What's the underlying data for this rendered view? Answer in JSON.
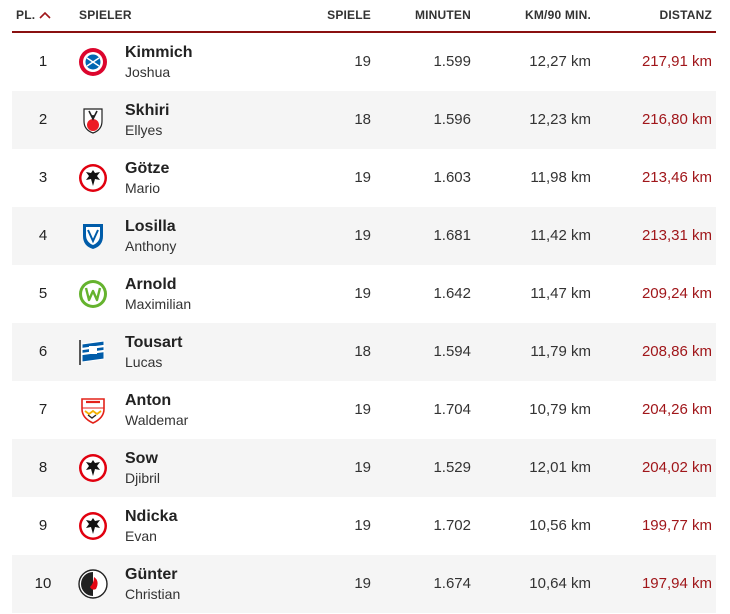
{
  "header": {
    "rank": "PL.",
    "player": "SPIELER",
    "games": "SPIELE",
    "minutes": "MINUTEN",
    "km_pace": "KM/90 MIN.",
    "distance": "DISTANZ"
  },
  "colors": {
    "accent": "#a0161a",
    "header_rule": "#8a1010",
    "alt_row": "#f5f5f5"
  },
  "rows": [
    {
      "rank": "1",
      "surname": "Kimmich",
      "firstname": "Joshua",
      "games": "19",
      "minutes": "1.599",
      "km_pace": "12,27 km",
      "distance": "217,91 km",
      "crest": "bayern-crest-icon"
    },
    {
      "rank": "2",
      "surname": "Skhiri",
      "firstname": "Ellyes",
      "games": "18",
      "minutes": "1.596",
      "km_pace": "12,23 km",
      "distance": "216,80 km",
      "crest": "koeln-crest-icon"
    },
    {
      "rank": "3",
      "surname": "Götze",
      "firstname": "Mario",
      "games": "19",
      "minutes": "1.603",
      "km_pace": "11,98 km",
      "distance": "213,46 km",
      "crest": "frankfurt-crest-icon"
    },
    {
      "rank": "4",
      "surname": "Losilla",
      "firstname": "Anthony",
      "games": "19",
      "minutes": "1.681",
      "km_pace": "11,42 km",
      "distance": "213,31 km",
      "crest": "bochum-crest-icon"
    },
    {
      "rank": "5",
      "surname": "Arnold",
      "firstname": "Maximilian",
      "games": "19",
      "minutes": "1.642",
      "km_pace": "11,47 km",
      "distance": "209,24 km",
      "crest": "wolfsburg-crest-icon"
    },
    {
      "rank": "6",
      "surname": "Tousart",
      "firstname": "Lucas",
      "games": "18",
      "minutes": "1.594",
      "km_pace": "11,79 km",
      "distance": "208,86 km",
      "crest": "hertha-crest-icon"
    },
    {
      "rank": "7",
      "surname": "Anton",
      "firstname": "Waldemar",
      "games": "19",
      "minutes": "1.704",
      "km_pace": "10,79 km",
      "distance": "204,26 km",
      "crest": "stuttgart-crest-icon"
    },
    {
      "rank": "8",
      "surname": "Sow",
      "firstname": "Djibril",
      "games": "19",
      "minutes": "1.529",
      "km_pace": "12,01 km",
      "distance": "204,02 km",
      "crest": "frankfurt-crest-icon"
    },
    {
      "rank": "9",
      "surname": "Ndicka",
      "firstname": "Evan",
      "games": "19",
      "minutes": "1.702",
      "km_pace": "10,56 km",
      "distance": "199,77 km",
      "crest": "frankfurt-crest-icon"
    },
    {
      "rank": "10",
      "surname": "Günter",
      "firstname": "Christian",
      "games": "19",
      "minutes": "1.674",
      "km_pace": "10,64 km",
      "distance": "197,94 km",
      "crest": "freiburg-crest-icon"
    }
  ]
}
